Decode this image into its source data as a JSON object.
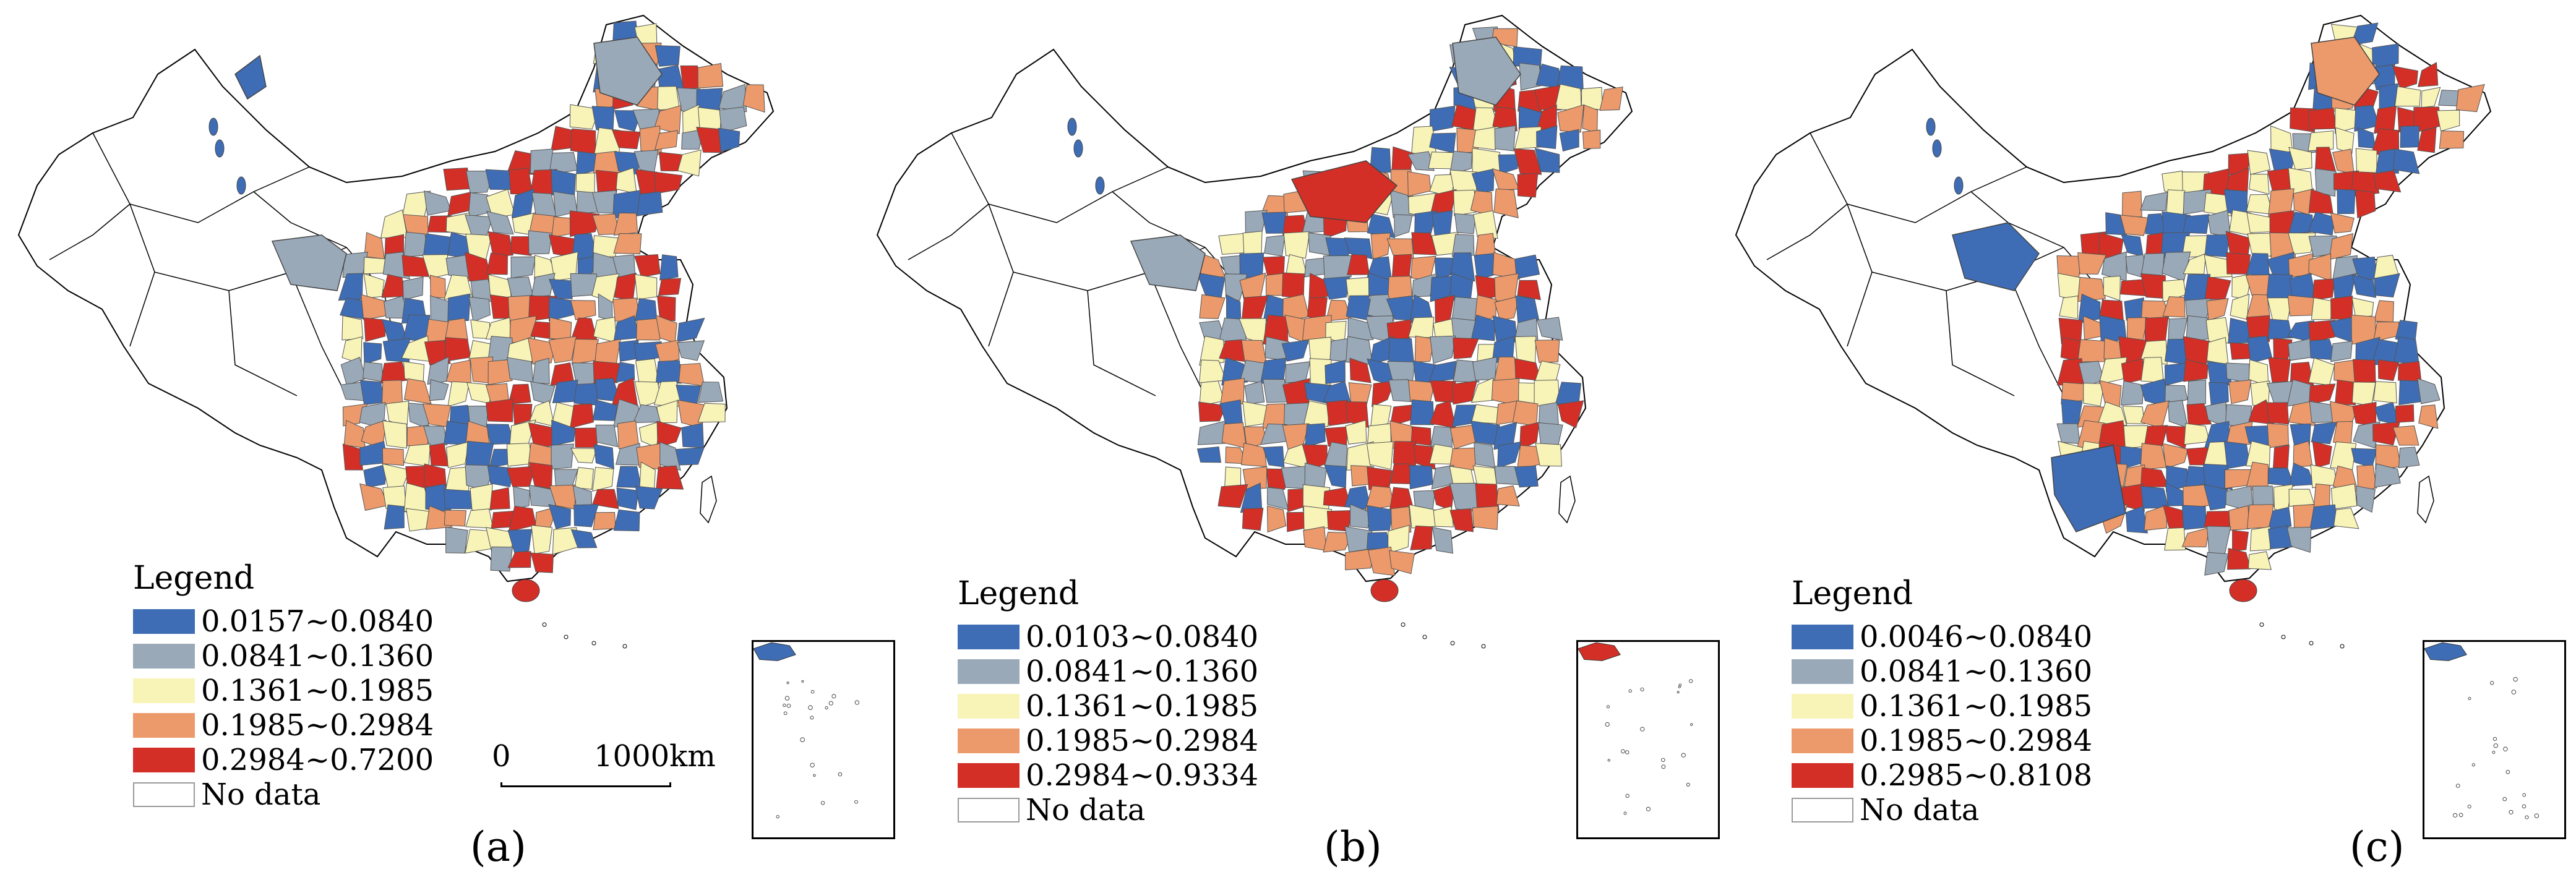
{
  "colors": {
    "class1": "#3e6db5",
    "class2": "#9aa9b8",
    "class3": "#f8f4b8",
    "class4": "#ec9a6b",
    "class5": "#d42f27",
    "nodata": "#ffffff"
  },
  "legend_title": "Legend",
  "no_data_label": "No data",
  "scale_bar": {
    "start": "0",
    "end": "1000km"
  },
  "panels": [
    {
      "label": "(a)",
      "legend": [
        "0.0157~0.0840",
        "0.0841~0.1360",
        "0.1361~0.1985",
        "0.1985~0.2984",
        "0.2984~0.7200"
      ]
    },
    {
      "label": "(b)",
      "legend": [
        "0.0103~0.0840",
        "0.0841~0.1360",
        "0.1361~0.1985",
        "0.1985~0.2984",
        "0.2984~0.9334"
      ]
    },
    {
      "label": "(c)",
      "legend": [
        "0.0046~0.0840",
        "0.0841~0.1360",
        "0.1361~0.1985",
        "0.1985~0.2984",
        "0.2985~0.8108"
      ]
    }
  ]
}
